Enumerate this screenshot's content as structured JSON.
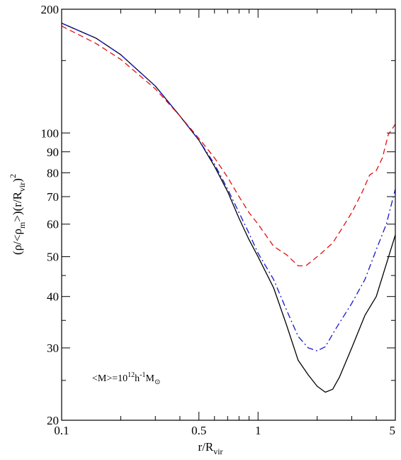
{
  "chart_data": {
    "type": "line",
    "title": "",
    "xlabel": {
      "main": "r/R",
      "sub": "vir"
    },
    "ylabel": {
      "parts": [
        "(ρ/<ρ",
        "m",
        ">)(r/R",
        "vir",
        ")",
        "2"
      ]
    },
    "x_scale": "log",
    "y_scale": "log",
    "xlim": [
      0.1,
      5
    ],
    "ylim": [
      20,
      200
    ],
    "x_ticks": [
      {
        "value": 0.1,
        "label": "0.1"
      },
      {
        "value": 0.5,
        "label": "0.5"
      },
      {
        "value": 1,
        "label": "1"
      },
      {
        "value": 5,
        "label": "5"
      }
    ],
    "y_ticks": [
      {
        "value": 20,
        "label": "20"
      },
      {
        "value": 30,
        "label": "30"
      },
      {
        "value": 40,
        "label": "40"
      },
      {
        "value": 50,
        "label": "50"
      },
      {
        "value": 60,
        "label": "60"
      },
      {
        "value": 70,
        "label": "70"
      },
      {
        "value": 80,
        "label": "80"
      },
      {
        "value": 90,
        "label": "90"
      },
      {
        "value": 100,
        "label": "100"
      },
      {
        "value": 200,
        "label": "200"
      }
    ],
    "annotation": {
      "parts": [
        "<M>=10",
        "12",
        "h",
        "-1",
        "M",
        "⊙"
      ]
    },
    "grid": false,
    "series": [
      {
        "style": "solid",
        "color": "#000000",
        "points": [
          [
            0.1,
            185
          ],
          [
            0.15,
            170
          ],
          [
            0.2,
            155
          ],
          [
            0.3,
            130
          ],
          [
            0.4,
            110
          ],
          [
            0.5,
            96
          ],
          [
            0.6,
            83
          ],
          [
            0.7,
            72
          ],
          [
            0.8,
            62
          ],
          [
            0.9,
            55
          ],
          [
            1.0,
            50
          ],
          [
            1.2,
            42
          ],
          [
            1.4,
            34
          ],
          [
            1.6,
            28
          ],
          [
            1.8,
            25.8
          ],
          [
            2.0,
            24.2
          ],
          [
            2.2,
            23.4
          ],
          [
            2.4,
            23.8
          ],
          [
            2.6,
            25.5
          ],
          [
            3.0,
            30
          ],
          [
            3.5,
            36
          ],
          [
            4.0,
            40
          ],
          [
            4.5,
            48
          ],
          [
            5.0,
            56.5
          ]
        ]
      },
      {
        "style": "dashdot",
        "color": "#1515cc",
        "points": [
          [
            0.1,
            185
          ],
          [
            0.15,
            170
          ],
          [
            0.2,
            155
          ],
          [
            0.3,
            130
          ],
          [
            0.4,
            110
          ],
          [
            0.5,
            96
          ],
          [
            0.6,
            84
          ],
          [
            0.7,
            73
          ],
          [
            0.8,
            64
          ],
          [
            0.9,
            57
          ],
          [
            1.0,
            51
          ],
          [
            1.2,
            44
          ],
          [
            1.4,
            37
          ],
          [
            1.6,
            32
          ],
          [
            1.8,
            30
          ],
          [
            2.0,
            29.5
          ],
          [
            2.2,
            30.2
          ],
          [
            2.5,
            33.5
          ],
          [
            3.0,
            38.5
          ],
          [
            3.5,
            44
          ],
          [
            4.0,
            52
          ],
          [
            4.5,
            60
          ],
          [
            5.0,
            73
          ]
        ]
      },
      {
        "style": "dashed",
        "color": "#e01010",
        "points": [
          [
            0.1,
            182
          ],
          [
            0.15,
            165
          ],
          [
            0.2,
            151
          ],
          [
            0.3,
            128
          ],
          [
            0.4,
            110
          ],
          [
            0.5,
            97
          ],
          [
            0.6,
            87
          ],
          [
            0.7,
            78
          ],
          [
            0.8,
            70
          ],
          [
            0.9,
            64
          ],
          [
            1.0,
            60
          ],
          [
            1.2,
            53
          ],
          [
            1.4,
            50.5
          ],
          [
            1.6,
            47.5
          ],
          [
            1.75,
            47.5
          ],
          [
            1.9,
            49
          ],
          [
            2.1,
            51
          ],
          [
            2.4,
            54
          ],
          [
            2.7,
            59
          ],
          [
            3.0,
            64
          ],
          [
            3.4,
            72
          ],
          [
            3.7,
            79
          ],
          [
            4.0,
            81
          ],
          [
            4.3,
            87
          ],
          [
            4.6,
            99
          ],
          [
            5.0,
            105
          ]
        ]
      }
    ]
  }
}
